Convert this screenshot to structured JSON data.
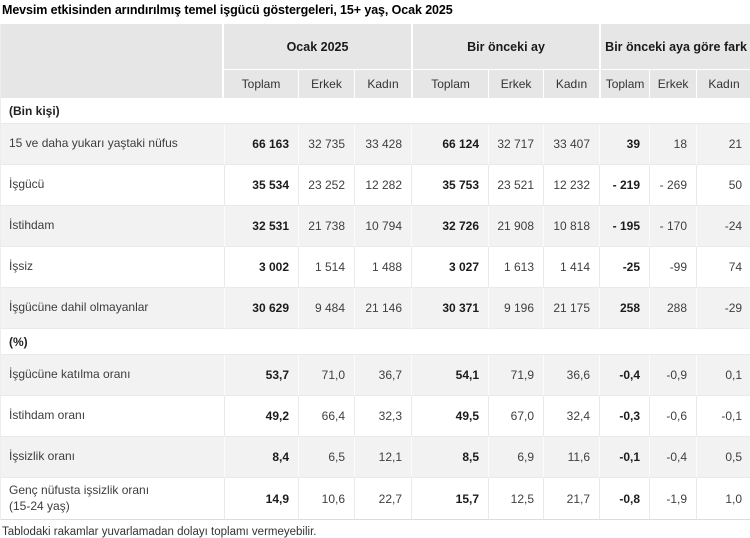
{
  "title": "Mevsim etkisinden arındırılmış temel işgücü göstergeleri, 15+ yaş, Ocak 2025",
  "footnote": "Tablodaki rakamlar yuvarlamadan dolayı toplamı vermeyebilir.",
  "colors": {
    "header_bg": "#e6e6e6",
    "stripe_bg": "#f2f2f2",
    "grid_line": "#eaeaea",
    "text": "#3d3d3d",
    "bold_text": "#1c1c1c"
  },
  "chart_data": {
    "type": "table",
    "title": "Mevsim etkisinden arındırılmış temel işgücü göstergeleri, 15+ yaş, Ocak 2025",
    "column_groups": [
      "Ocak 2025",
      "Bir önceki ay",
      "Bir önceki aya göre fark"
    ],
    "sub_columns": [
      "Toplam",
      "Erkek",
      "Kadın",
      "Toplam",
      "Erkek",
      "Kadın",
      "Toplam",
      "Erkek",
      "Kadın"
    ],
    "sections": [
      {
        "label": "(Bin kişi)",
        "rows": [
          {
            "label": "15 ve daha yukarı yaştaki nüfus",
            "values": [
              "66 163",
              "32 735",
              "33 428",
              "66 124",
              "32 717",
              "33 407",
              "39",
              "18",
              "21"
            ]
          },
          {
            "label": "İşgücü",
            "values": [
              "35 534",
              "23 252",
              "12 282",
              "35 753",
              "23 521",
              "12 232",
              "- 219",
              "- 269",
              "50"
            ]
          },
          {
            "label": "İstihdam",
            "values": [
              "32 531",
              "21 738",
              "10 794",
              "32 726",
              "21 908",
              "10 818",
              "- 195",
              "- 170",
              "-24"
            ]
          },
          {
            "label": "İşsiz",
            "values": [
              "3 002",
              "1 514",
              "1 488",
              "3 027",
              "1 613",
              "1 414",
              "-25",
              "-99",
              "74"
            ]
          },
          {
            "label": "İşgücüne dahil olmayanlar",
            "values": [
              "30 629",
              "9 484",
              "21 146",
              "30 371",
              "9 196",
              "21 175",
              "258",
              "288",
              "-29"
            ]
          }
        ]
      },
      {
        "label": "(%)",
        "rows": [
          {
            "label": "İşgücüne katılma oranı",
            "values": [
              "53,7",
              "71,0",
              "36,7",
              "54,1",
              "71,9",
              "36,6",
              "-0,4",
              "-0,9",
              "0,1"
            ]
          },
          {
            "label": "İstihdam oranı",
            "values": [
              "49,2",
              "66,4",
              "32,3",
              "49,5",
              "67,0",
              "32,4",
              "-0,3",
              "-0,6",
              "-0,1"
            ]
          },
          {
            "label": "İşsizlik oranı",
            "values": [
              "8,4",
              "6,5",
              "12,1",
              "8,5",
              "6,9",
              "11,6",
              "-0,1",
              "-0,4",
              "0,5"
            ]
          },
          {
            "label": "Genç nüfusta işsizlik oranı\n(15-24 yaş)",
            "values": [
              "14,9",
              "10,6",
              "22,7",
              "15,7",
              "12,5",
              "21,7",
              "-0,8",
              "-1,9",
              "1,0"
            ]
          }
        ]
      }
    ]
  }
}
